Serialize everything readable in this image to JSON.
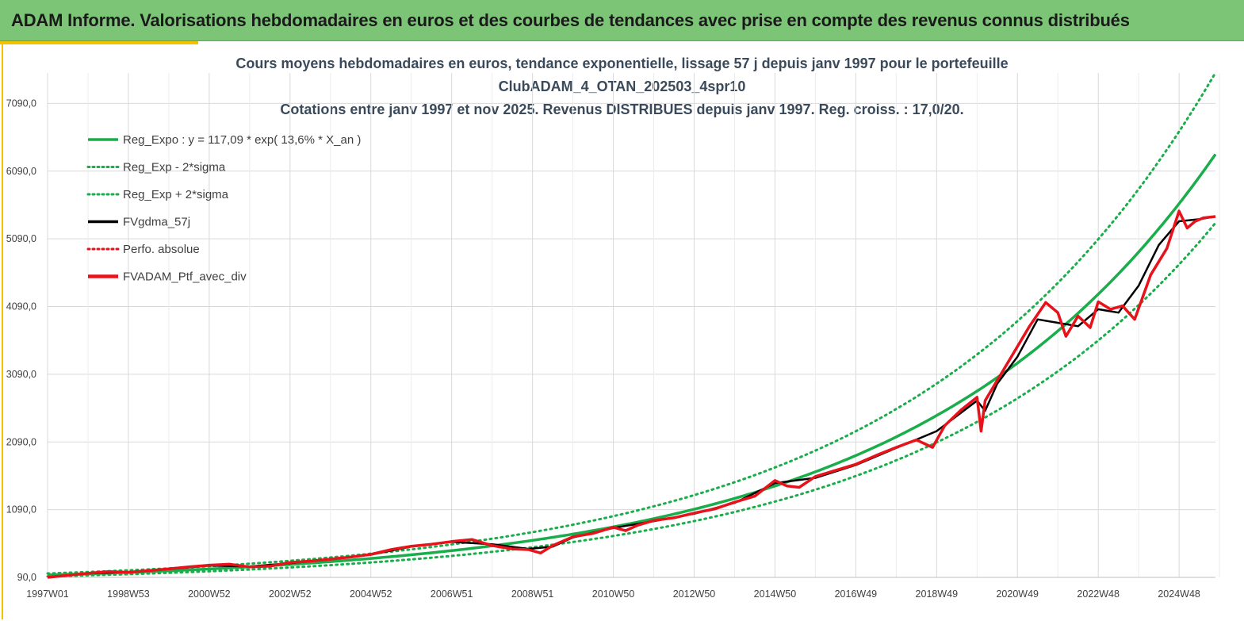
{
  "banner": {
    "title": "ADAM Informe. Valorisations hebdomadaires en euros et des courbes de tendances avec prise en compte des revenus connus distribués"
  },
  "colors": {
    "banner": "#7cc576",
    "accent": "#f2c200",
    "trend": "#1aad4b",
    "black_series": "#000000",
    "red_series": "#e8121b",
    "grid": "#d9d9d9"
  },
  "chart_data": {
    "type": "line",
    "title_lines": [
      "Cours moyens hebdomadaires  en euros, tendance exponentielle, lissage 57 j depuis janv 1997 pour le portefeuille",
      "ClubADAM_4_OTAN_202503_4spr10",
      "Cotations  entre janv 1997 et nov  2025. Revenus DISTRIBUES depuis janv 1997. Reg. croiss. : 17,0/20."
    ],
    "xlabel": "",
    "ylabel": "",
    "x_ticks": [
      "1997W01",
      "1998W53",
      "2000W52",
      "2002W52",
      "2004W52",
      "2006W51",
      "2008W51",
      "2010W50",
      "2012W50",
      "2014W50",
      "2016W49",
      "2018W49",
      "2020W49",
      "2022W48",
      "2024W48"
    ],
    "y_ticks": [
      "90,0",
      "1090,0",
      "2090,0",
      "3090,0",
      "4090,0",
      "5090,0",
      "6090,0",
      "7090,0"
    ],
    "x_range": [
      1997.0,
      2025.9
    ],
    "ylim": [
      90,
      7540
    ],
    "grid": true,
    "legend_position": "top-left",
    "legend": [
      {
        "label": "Reg_Expo : y = 117,09 * exp( 13,6% *  X_an )",
        "style": "solid",
        "color": "#1aad4b"
      },
      {
        "label": "Reg_Exp - 2*sigma",
        "style": "dotted",
        "color": "#1aad4b"
      },
      {
        "label": "Reg_Exp + 2*sigma",
        "style": "dotted",
        "color": "#1aad4b"
      },
      {
        "label": "FVgdma_57j",
        "style": "solid",
        "color": "#000000"
      },
      {
        "label": "Perfo. absolue",
        "style": "dotted",
        "color": "#e8121b"
      },
      {
        "label": "FVADAM_Ptf_avec_div",
        "style": "solid-thick",
        "color": "#e8121b"
      }
    ],
    "regression": {
      "a": 117.09,
      "rate": 0.136,
      "band_low": 0.84,
      "band_high": 1.19
    },
    "series": [
      {
        "name": "FVADAM_Ptf_avec_div",
        "x": [
          1997.0,
          1997.5,
          1998.0,
          1998.5,
          1999.0,
          1999.5,
          2000.0,
          2000.5,
          2001.0,
          2001.5,
          2002.0,
          2002.5,
          2003.0,
          2003.5,
          2004.0,
          2004.5,
          2005.0,
          2005.5,
          2006.0,
          2006.5,
          2007.0,
          2007.5,
          2008.0,
          2008.5,
          2008.9,
          2009.2,
          2009.5,
          2010.0,
          2010.5,
          2011.0,
          2011.3,
          2011.6,
          2012.0,
          2012.5,
          2013.0,
          2013.5,
          2014.0,
          2014.5,
          2015.0,
          2015.3,
          2015.6,
          2016.0,
          2016.5,
          2017.0,
          2017.5,
          2018.0,
          2018.5,
          2018.9,
          2019.2,
          2019.6,
          2020.0,
          2020.1,
          2020.2,
          2020.5,
          2020.9,
          2021.3,
          2021.7,
          2022.0,
          2022.2,
          2022.5,
          2022.8,
          2023.0,
          2023.3,
          2023.6,
          2023.9,
          2024.3,
          2024.7,
          2025.0,
          2025.2,
          2025.4,
          2025.6,
          2025.9
        ],
        "values": [
          90,
          120,
          150,
          175,
          165,
          190,
          215,
          245,
          270,
          285,
          245,
          255,
          310,
          330,
          360,
          390,
          430,
          500,
          550,
          580,
          620,
          650,
          560,
          510,
          500,
          450,
          560,
          690,
          740,
          830,
          780,
          860,
          930,
          970,
          1040,
          1100,
          1200,
          1290,
          1520,
          1440,
          1420,
          1580,
          1670,
          1760,
          1890,
          2010,
          2120,
          2010,
          2330,
          2560,
          2750,
          2250,
          2700,
          3000,
          3400,
          3800,
          4150,
          4000,
          3650,
          3950,
          3780,
          4160,
          4050,
          4100,
          3900,
          4560,
          4950,
          5500,
          5250,
          5350,
          5400,
          5420
        ]
      },
      {
        "name": "FVgdma_57j",
        "x": [
          1997.0,
          1998.0,
          1999.0,
          2000.0,
          2001.0,
          2002.0,
          2003.0,
          2004.0,
          2005.0,
          2006.0,
          2007.0,
          2008.0,
          2008.9,
          2009.5,
          2010.0,
          2011.0,
          2012.0,
          2013.0,
          2014.0,
          2015.0,
          2016.0,
          2017.0,
          2018.0,
          2019.0,
          2019.6,
          2020.0,
          2020.2,
          2020.5,
          2021.0,
          2021.5,
          2022.0,
          2022.5,
          2023.0,
          2023.5,
          2024.0,
          2024.5,
          2025.0,
          2025.5,
          2025.9
        ],
        "values": [
          95,
          148,
          170,
          212,
          265,
          250,
          300,
          355,
          425,
          545,
          615,
          580,
          510,
          545,
          680,
          820,
          920,
          1030,
          1190,
          1480,
          1560,
          1750,
          2000,
          2250,
          2520,
          2700,
          2550,
          2950,
          3350,
          3900,
          3850,
          3800,
          4050,
          4000,
          4400,
          5000,
          5350,
          5380,
          5420
        ]
      }
    ]
  }
}
